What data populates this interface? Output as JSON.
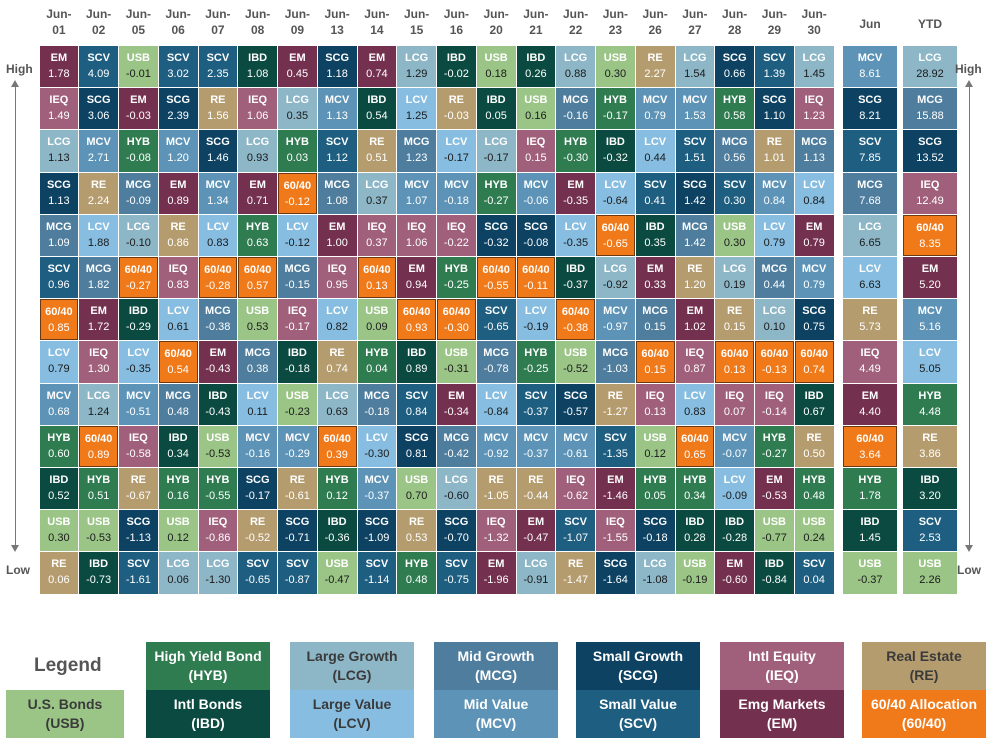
{
  "legend": {
    "title": "Legend",
    "items": [
      {
        "code": "USB",
        "name": "U.S. Bonds"
      },
      {
        "code": "HYB",
        "name": "High Yield Bond"
      },
      {
        "code": "IBD",
        "name": "Intl Bonds"
      },
      {
        "code": "LCG",
        "name": "Large Growth"
      },
      {
        "code": "LCV",
        "name": "Large Value"
      },
      {
        "code": "MCG",
        "name": "Mid Growth"
      },
      {
        "code": "MCV",
        "name": "Mid Value"
      },
      {
        "code": "SCG",
        "name": "Small Growth"
      },
      {
        "code": "SCV",
        "name": "Small Value"
      },
      {
        "code": "IEQ",
        "name": "Intl Equity"
      },
      {
        "code": "EM",
        "name": "Emg Markets"
      },
      {
        "code": "RE",
        "name": "Real Estate"
      },
      {
        "code": "60/40",
        "name": "60/40 Allocation"
      }
    ]
  },
  "side_labels": {
    "high": "High",
    "low": "Low"
  },
  "colors": {
    "EM": "#74304f",
    "SCV": "#1e5e80",
    "USB": "#9bc587",
    "IBD": "#0b4a40",
    "SCG": "#0d4263",
    "LCG": "#8db6c7",
    "RE": "#b59c6f",
    "MCG": "#4e7d9e",
    "MCV": "#5c93b6",
    "IEQ": "#a0607b",
    "HYB": "#2f7c51",
    "LCV": "#86bde0",
    "60/40": "#f07a1a",
    "dark_text": "#333333"
  },
  "chart_data": {
    "type": "table",
    "title": "",
    "columns": [
      "Jun-01",
      "Jun-02",
      "Jun-05",
      "Jun-06",
      "Jun-07",
      "Jun-08",
      "Jun-09",
      "Jun-13",
      "Jun-14",
      "Jun-15",
      "Jun-16",
      "Jun-20",
      "Jun-21",
      "Jun-22",
      "Jun-23",
      "Jun-26",
      "Jun-27",
      "Jun-28",
      "Jun-29",
      "Jun-30"
    ],
    "summary_columns": [
      "Jun",
      "YTD"
    ],
    "daily": [
      [
        [
          "EM",
          "1.78"
        ],
        [
          "IEQ",
          "1.49"
        ],
        [
          "LCG",
          "1.13"
        ],
        [
          "SCG",
          "1.13"
        ],
        [
          "MCG",
          "1.09"
        ],
        [
          "SCV",
          "0.96"
        ],
        [
          "60/40",
          "0.85"
        ],
        [
          "LCV",
          "0.79"
        ],
        [
          "MCV",
          "0.68"
        ],
        [
          "HYB",
          "0.60"
        ],
        [
          "IBD",
          "0.52"
        ],
        [
          "USB",
          "0.30"
        ],
        [
          "RE",
          "0.06"
        ]
      ],
      [
        [
          "SCV",
          "4.09"
        ],
        [
          "SCG",
          "3.06"
        ],
        [
          "MCV",
          "2.71"
        ],
        [
          "RE",
          "2.24"
        ],
        [
          "LCV",
          "1.88"
        ],
        [
          "MCG",
          "1.82"
        ],
        [
          "EM",
          "1.72"
        ],
        [
          "IEQ",
          "1.30"
        ],
        [
          "LCG",
          "1.24"
        ],
        [
          "60/40",
          "0.89"
        ],
        [
          "HYB",
          "0.51"
        ],
        [
          "USB",
          "-0.53"
        ],
        [
          "IBD",
          "-0.73"
        ]
      ],
      [
        [
          "USB",
          "-0.01"
        ],
        [
          "EM",
          "-0.03"
        ],
        [
          "HYB",
          "-0.08"
        ],
        [
          "MCG",
          "-0.09"
        ],
        [
          "LCG",
          "-0.10"
        ],
        [
          "60/40",
          "-0.27"
        ],
        [
          "IBD",
          "-0.29"
        ],
        [
          "LCV",
          "-0.35"
        ],
        [
          "MCV",
          "-0.51"
        ],
        [
          "IEQ",
          "-0.58"
        ],
        [
          "RE",
          "-0.67"
        ],
        [
          "SCG",
          "-1.13"
        ],
        [
          "SCV",
          "-1.61"
        ]
      ],
      [
        [
          "SCV",
          "3.02"
        ],
        [
          "SCG",
          "2.39"
        ],
        [
          "MCV",
          "1.20"
        ],
        [
          "EM",
          "0.89"
        ],
        [
          "RE",
          "0.86"
        ],
        [
          "IEQ",
          "0.83"
        ],
        [
          "LCV",
          "0.61"
        ],
        [
          "60/40",
          "0.54"
        ],
        [
          "MCG",
          "0.48"
        ],
        [
          "IBD",
          "0.34"
        ],
        [
          "HYB",
          "0.16"
        ],
        [
          "USB",
          "0.12"
        ],
        [
          "LCG",
          "0.06"
        ]
      ],
      [
        [
          "SCV",
          "2.35"
        ],
        [
          "RE",
          "1.56"
        ],
        [
          "SCG",
          "1.46"
        ],
        [
          "MCV",
          "1.34"
        ],
        [
          "LCV",
          "0.83"
        ],
        [
          "60/40",
          "-0.28"
        ],
        [
          "MCG",
          "-0.38"
        ],
        [
          "EM",
          "-0.43"
        ],
        [
          "IBD",
          "-0.43"
        ],
        [
          "USB",
          "-0.53"
        ],
        [
          "HYB",
          "-0.55"
        ],
        [
          "IEQ",
          "-0.86"
        ],
        [
          "LCG",
          "-1.30"
        ]
      ],
      [
        [
          "IBD",
          "1.08"
        ],
        [
          "IEQ",
          "1.06"
        ],
        [
          "LCG",
          "0.93"
        ],
        [
          "EM",
          "0.71"
        ],
        [
          "HYB",
          "0.63"
        ],
        [
          "60/40",
          "0.57"
        ],
        [
          "USB",
          "0.53"
        ],
        [
          "MCG",
          "0.38"
        ],
        [
          "LCV",
          "0.11"
        ],
        [
          "MCV",
          "-0.16"
        ],
        [
          "SCG",
          "-0.17"
        ],
        [
          "RE",
          "-0.52"
        ],
        [
          "SCV",
          "-0.65"
        ]
      ],
      [
        [
          "EM",
          "0.45"
        ],
        [
          "LCG",
          "0.35"
        ],
        [
          "HYB",
          "0.03"
        ],
        [
          "60/40",
          "-0.12"
        ],
        [
          "LCV",
          "-0.12"
        ],
        [
          "MCG",
          "-0.15"
        ],
        [
          "IEQ",
          "-0.17"
        ],
        [
          "IBD",
          "-0.18"
        ],
        [
          "USB",
          "-0.23"
        ],
        [
          "MCV",
          "-0.29"
        ],
        [
          "RE",
          "-0.61"
        ],
        [
          "SCG",
          "-0.71"
        ],
        [
          "SCV",
          "-0.87"
        ]
      ],
      [
        [
          "SCG",
          "1.18"
        ],
        [
          "MCV",
          "1.13"
        ],
        [
          "SCV",
          "1.12"
        ],
        [
          "MCG",
          "1.08"
        ],
        [
          "EM",
          "1.00"
        ],
        [
          "IEQ",
          "0.95"
        ],
        [
          "LCV",
          "0.82"
        ],
        [
          "RE",
          "0.74"
        ],
        [
          "LCG",
          "0.63"
        ],
        [
          "60/40",
          "0.39"
        ],
        [
          "HYB",
          "0.12"
        ],
        [
          "IBD",
          "-0.36"
        ],
        [
          "USB",
          "-0.47"
        ]
      ],
      [
        [
          "EM",
          "0.74"
        ],
        [
          "IBD",
          "0.54"
        ],
        [
          "RE",
          "0.51"
        ],
        [
          "LCG",
          "0.37"
        ],
        [
          "IEQ",
          "0.37"
        ],
        [
          "60/40",
          "0.13"
        ],
        [
          "USB",
          "0.09"
        ],
        [
          "HYB",
          "0.04"
        ],
        [
          "MCG",
          "-0.18"
        ],
        [
          "LCV",
          "-0.30"
        ],
        [
          "MCV",
          "-0.37"
        ],
        [
          "SCG",
          "-1.09"
        ],
        [
          "SCV",
          "-1.14"
        ]
      ],
      [
        [
          "LCG",
          "1.29"
        ],
        [
          "LCV",
          "1.25"
        ],
        [
          "MCG",
          "1.23"
        ],
        [
          "MCV",
          "1.07"
        ],
        [
          "IEQ",
          "1.06"
        ],
        [
          "EM",
          "0.94"
        ],
        [
          "60/40",
          "0.93"
        ],
        [
          "IBD",
          "0.89"
        ],
        [
          "SCV",
          "0.84"
        ],
        [
          "SCG",
          "0.81"
        ],
        [
          "USB",
          "0.70"
        ],
        [
          "RE",
          "0.53"
        ],
        [
          "HYB",
          "0.48"
        ]
      ],
      [
        [
          "IBD",
          "-0.02"
        ],
        [
          "RE",
          "-0.03"
        ],
        [
          "LCV",
          "-0.17"
        ],
        [
          "MCV",
          "-0.18"
        ],
        [
          "IEQ",
          "-0.22"
        ],
        [
          "HYB",
          "-0.25"
        ],
        [
          "60/40",
          "-0.30"
        ],
        [
          "USB",
          "-0.31"
        ],
        [
          "EM",
          "-0.34"
        ],
        [
          "MCG",
          "-0.42"
        ],
        [
          "LCG",
          "-0.60"
        ],
        [
          "SCG",
          "-0.70"
        ],
        [
          "SCV",
          "-0.75"
        ]
      ],
      [
        [
          "USB",
          "0.18"
        ],
        [
          "IBD",
          "0.05"
        ],
        [
          "LCG",
          "-0.17"
        ],
        [
          "HYB",
          "-0.27"
        ],
        [
          "SCG",
          "-0.32"
        ],
        [
          "60/40",
          "-0.55"
        ],
        [
          "SCV",
          "-0.65"
        ],
        [
          "MCG",
          "-0.78"
        ],
        [
          "LCV",
          "-0.84"
        ],
        [
          "MCV",
          "-0.92"
        ],
        [
          "RE",
          "-1.05"
        ],
        [
          "IEQ",
          "-1.32"
        ],
        [
          "EM",
          "-1.96"
        ]
      ],
      [
        [
          "IBD",
          "0.26"
        ],
        [
          "USB",
          "0.16"
        ],
        [
          "IEQ",
          "0.15"
        ],
        [
          "MCV",
          "-0.06"
        ],
        [
          "SCG",
          "-0.08"
        ],
        [
          "60/40",
          "-0.11"
        ],
        [
          "LCV",
          "-0.19"
        ],
        [
          "HYB",
          "-0.25"
        ],
        [
          "SCV",
          "-0.37"
        ],
        [
          "MCV",
          "-0.37"
        ],
        [
          "RE",
          "-0.44"
        ],
        [
          "EM",
          "-0.47"
        ],
        [
          "LCG",
          "-0.91"
        ]
      ],
      [
        [
          "LCG",
          "0.88"
        ],
        [
          "MCG",
          "-0.16"
        ],
        [
          "HYB",
          "-0.30"
        ],
        [
          "EM",
          "-0.35"
        ],
        [
          "LCV",
          "-0.35"
        ],
        [
          "IBD",
          "-0.37"
        ],
        [
          "60/40",
          "-0.38"
        ],
        [
          "USB",
          "-0.52"
        ],
        [
          "SCG",
          "-0.57"
        ],
        [
          "MCV",
          "-0.61"
        ],
        [
          "IEQ",
          "-0.62"
        ],
        [
          "SCV",
          "-1.07"
        ],
        [
          "RE",
          "-1.47"
        ]
      ],
      [
        [
          "USB",
          "0.30"
        ],
        [
          "HYB",
          "-0.17"
        ],
        [
          "IBD",
          "-0.32"
        ],
        [
          "LCV",
          "-0.64"
        ],
        [
          "60/40",
          "-0.65"
        ],
        [
          "LCG",
          "-0.92"
        ],
        [
          "MCV",
          "-0.97"
        ],
        [
          "MCG",
          "-1.03"
        ],
        [
          "RE",
          "-1.27"
        ],
        [
          "SCV",
          "-1.35"
        ],
        [
          "EM",
          "-1.46"
        ],
        [
          "IEQ",
          "-1.55"
        ],
        [
          "SCG",
          "-1.64"
        ]
      ],
      [
        [
          "RE",
          "2.27"
        ],
        [
          "MCV",
          "0.79"
        ],
        [
          "LCV",
          "0.44"
        ],
        [
          "SCV",
          "0.41"
        ],
        [
          "IBD",
          "0.35"
        ],
        [
          "EM",
          "0.33"
        ],
        [
          "MCG",
          "0.15"
        ],
        [
          "60/40",
          "0.15"
        ],
        [
          "IEQ",
          "0.13"
        ],
        [
          "USB",
          "0.12"
        ],
        [
          "HYB",
          "0.05"
        ],
        [
          "SCG",
          "-0.18"
        ],
        [
          "LCG",
          "-1.08"
        ]
      ],
      [
        [
          "LCG",
          "1.54"
        ],
        [
          "MCV",
          "1.53"
        ],
        [
          "SCV",
          "1.51"
        ],
        [
          "SCG",
          "1.42"
        ],
        [
          "MCG",
          "1.42"
        ],
        [
          "RE",
          "1.20"
        ],
        [
          "EM",
          "1.02"
        ],
        [
          "IEQ",
          "0.87"
        ],
        [
          "LCV",
          "0.83"
        ],
        [
          "60/40",
          "0.65"
        ],
        [
          "HYB",
          "0.34"
        ],
        [
          "IBD",
          "0.28"
        ],
        [
          "USB",
          "-0.19"
        ]
      ],
      [
        [
          "SCG",
          "0.66"
        ],
        [
          "HYB",
          "0.58"
        ],
        [
          "MCG",
          "0.56"
        ],
        [
          "SCV",
          "0.30"
        ],
        [
          "USB",
          "0.30"
        ],
        [
          "LCG",
          "0.19"
        ],
        [
          "RE",
          "0.15"
        ],
        [
          "60/40",
          "0.13"
        ],
        [
          "IEQ",
          "0.07"
        ],
        [
          "MCV",
          "-0.07"
        ],
        [
          "LCV",
          "-0.09"
        ],
        [
          "IBD",
          "-0.28"
        ],
        [
          "EM",
          "-0.60"
        ]
      ],
      [
        [
          "SCV",
          "1.39"
        ],
        [
          "SCG",
          "1.10"
        ],
        [
          "RE",
          "1.01"
        ],
        [
          "MCV",
          "0.84"
        ],
        [
          "LCV",
          "0.79"
        ],
        [
          "MCG",
          "0.44"
        ],
        [
          "LCG",
          "0.10"
        ],
        [
          "60/40",
          "-0.13"
        ],
        [
          "IEQ",
          "-0.14"
        ],
        [
          "HYB",
          "-0.27"
        ],
        [
          "EM",
          "-0.53"
        ],
        [
          "USB",
          "-0.77"
        ],
        [
          "IBD",
          "-0.84"
        ]
      ],
      [
        [
          "LCG",
          "1.45"
        ],
        [
          "IEQ",
          "1.23"
        ],
        [
          "MCG",
          "1.13"
        ],
        [
          "LCV",
          "0.84"
        ],
        [
          "EM",
          "0.79"
        ],
        [
          "MCV",
          "0.79"
        ],
        [
          "SCG",
          "0.75"
        ],
        [
          "60/40",
          "0.74"
        ],
        [
          "IBD",
          "0.67"
        ],
        [
          "RE",
          "0.50"
        ],
        [
          "HYB",
          "0.48"
        ],
        [
          "USB",
          "0.24"
        ],
        [
          "SCV",
          "0.04"
        ]
      ]
    ],
    "summary": [
      [
        [
          "MCV",
          "8.61"
        ],
        [
          "SCG",
          "8.21"
        ],
        [
          "SCV",
          "7.85"
        ],
        [
          "MCG",
          "7.68"
        ],
        [
          "LCG",
          "6.65"
        ],
        [
          "LCV",
          "6.63"
        ],
        [
          "RE",
          "5.73"
        ],
        [
          "IEQ",
          "4.49"
        ],
        [
          "EM",
          "4.40"
        ],
        [
          "60/40",
          "3.64"
        ],
        [
          "HYB",
          "1.78"
        ],
        [
          "IBD",
          "1.45"
        ],
        [
          "USB",
          "-0.37"
        ]
      ],
      [
        [
          "LCG",
          "28.92"
        ],
        [
          "MCG",
          "15.88"
        ],
        [
          "SCG",
          "13.52"
        ],
        [
          "IEQ",
          "12.49"
        ],
        [
          "60/40",
          "8.35"
        ],
        [
          "EM",
          "5.20"
        ],
        [
          "MCV",
          "5.16"
        ],
        [
          "LCV",
          "5.05"
        ],
        [
          "HYB",
          "4.48"
        ],
        [
          "RE",
          "3.86"
        ],
        [
          "IBD",
          "3.20"
        ],
        [
          "SCV",
          "2.53"
        ],
        [
          "USB",
          "2.26"
        ]
      ]
    ]
  }
}
